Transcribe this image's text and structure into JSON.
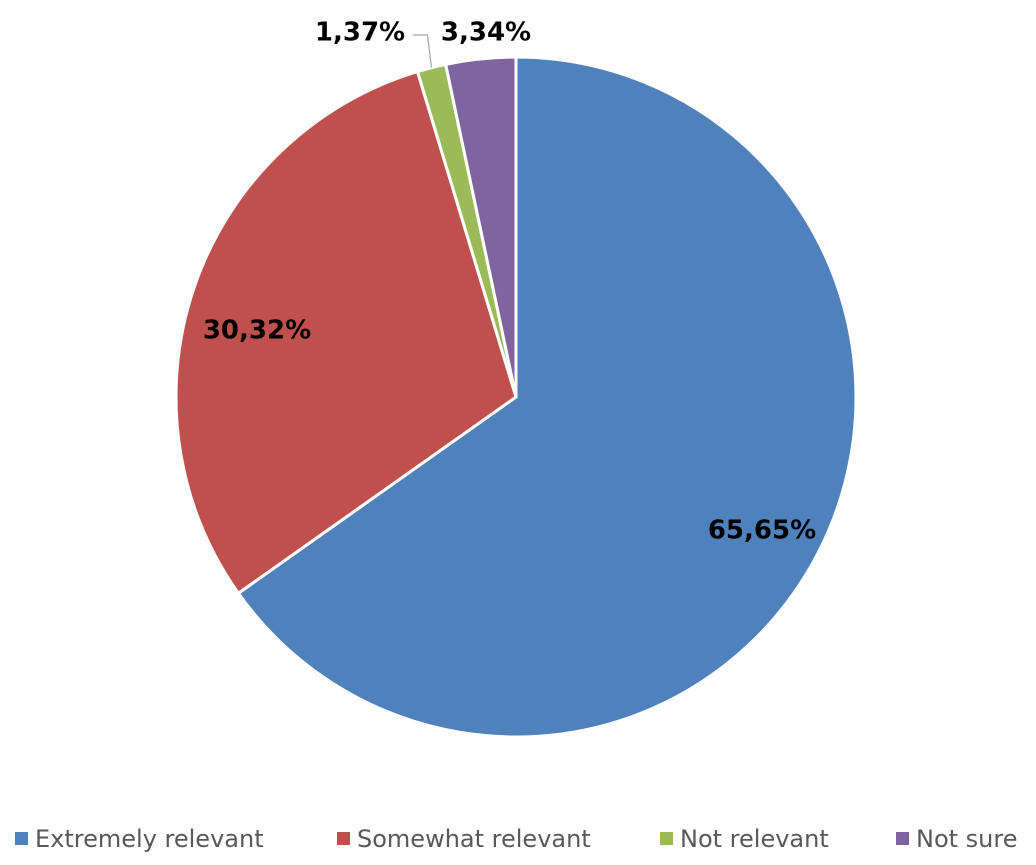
{
  "chart_data": {
    "type": "pie",
    "categories": [
      "Extremely relevant",
      "Somewhat relevant",
      "Not relevant",
      "Not sure"
    ],
    "values": [
      65.65,
      30.32,
      1.37,
      3.34
    ],
    "data_labels": [
      "65,65%",
      "30,32%",
      "1,37%",
      "3,34%"
    ],
    "colors": [
      "#4F81BD",
      "#C0504D",
      "#9BBB59",
      "#8064A2"
    ],
    "legend_position": "bottom",
    "start_angle": "12 o'clock, clockwise"
  }
}
